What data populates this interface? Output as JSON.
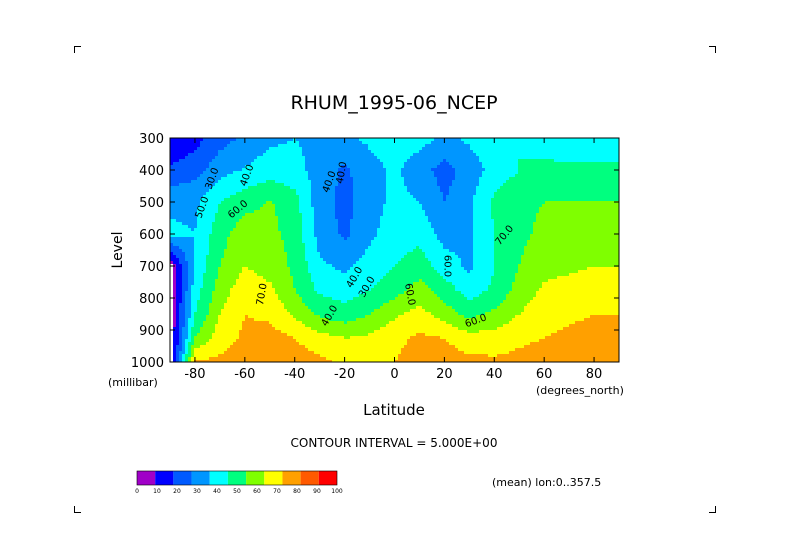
{
  "chart_data": {
    "type": "heatmap",
    "title": "RHUM_1995-06_NCEP",
    "xlabel": "Latitude",
    "ylabel": "Level",
    "y_unit": "(millibar)",
    "x_unit": "(degrees_north)",
    "xlim": [
      -90,
      90
    ],
    "ylim": [
      1000,
      300
    ],
    "x_ticks": [
      "-80",
      "-60",
      "-40",
      "-20",
      "0",
      "20",
      "40",
      "60",
      "80"
    ],
    "y_ticks": [
      "300",
      "400",
      "500",
      "600",
      "700",
      "800",
      "900",
      "1000"
    ],
    "contour_interval_text": "CONTOUR INTERVAL = 5.000E+00",
    "mean_text": "(mean) lon:0..357.5",
    "contour_labels": [
      "30.0",
      "40.0",
      "40.0",
      "50.0",
      "60.0",
      "40.0",
      "40.0",
      "30.0",
      "60.0",
      "60.0",
      "70.0",
      "70.0",
      "60.0",
      "40.0"
    ],
    "colorbar": {
      "ticks": [
        "0",
        "10",
        "20",
        "30",
        "40",
        "50",
        "60",
        "70",
        "80",
        "90",
        "100"
      ],
      "colors": [
        "#a000c8",
        "#0000ff",
        "#005aff",
        "#0096ff",
        "#00ffff",
        "#00ff7f",
        "#7fff00",
        "#ffff00",
        "#ffa000",
        "#ff5a00",
        "#ff0000"
      ]
    },
    "levels": [
      1000,
      925,
      850,
      775,
      700,
      600,
      500,
      400,
      300
    ],
    "lats": [
      -90,
      -80,
      -70,
      -60,
      -50,
      -40,
      -30,
      -20,
      -10,
      0,
      10,
      20,
      30,
      40,
      50,
      60,
      70,
      80,
      90
    ],
    "rh": [
      [
        0,
        82,
        82,
        85,
        86,
        85,
        82,
        78,
        77,
        80,
        85,
        85,
        83,
        82,
        83,
        84,
        85,
        88,
        90
      ],
      [
        0,
        60,
        75,
        82,
        84,
        80,
        74,
        70,
        72,
        77,
        82,
        80,
        74,
        74,
        78,
        80,
        82,
        84,
        85
      ],
      [
        0,
        50,
        70,
        80,
        78,
        68,
        58,
        54,
        60,
        68,
        74,
        65,
        57,
        62,
        70,
        76,
        78,
        80,
        80
      ],
      [
        0,
        45,
        65,
        76,
        72,
        60,
        48,
        45,
        50,
        56,
        64,
        55,
        45,
        52,
        64,
        72,
        74,
        75,
        75
      ],
      [
        0,
        42,
        60,
        70,
        66,
        58,
        42,
        38,
        44,
        50,
        55,
        45,
        38,
        50,
        60,
        66,
        68,
        70,
        70
      ],
      [
        42,
        40,
        56,
        66,
        63,
        56,
        36,
        28,
        38,
        45,
        47,
        36,
        38,
        50,
        58,
        62,
        64,
        65,
        66
      ],
      [
        38,
        38,
        50,
        56,
        61,
        54,
        34,
        27,
        35,
        43,
        40,
        30,
        38,
        52,
        58,
        60,
        60,
        60,
        60
      ],
      [
        22,
        26,
        36,
        41,
        45,
        43,
        36,
        28,
        36,
        42,
        34,
        26,
        34,
        44,
        50,
        52,
        52,
        52,
        52
      ],
      [
        10,
        16,
        26,
        32,
        38,
        40,
        38,
        38,
        42,
        46,
        44,
        38,
        42,
        48,
        50,
        46,
        44,
        44,
        44
      ]
    ]
  }
}
